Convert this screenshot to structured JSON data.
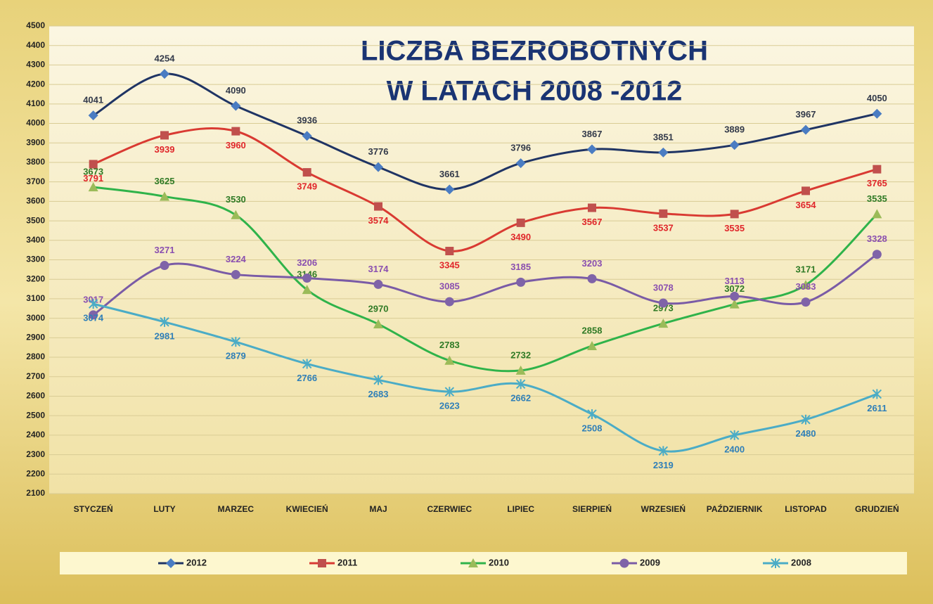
{
  "chart_data": {
    "type": "line",
    "title": "LICZBA BEZROBOTNYCH",
    "subtitle": "W LATACH 2008 -2012",
    "categories": [
      "STYCZEŃ",
      "LUTY",
      "MARZEC",
      "KWIECIEŃ",
      "MAJ",
      "CZERWIEC",
      "LIPIEC",
      "SIERPIEŃ",
      "WRZESIEŃ",
      "PAŹDZIERNIK",
      "LISTOPAD",
      "GRUDZIEŃ"
    ],
    "series": [
      {
        "name": "2012",
        "color": "#1f3464",
        "marker_color": "#4a7cc2",
        "marker": "diamond",
        "label_color": "#333a4a",
        "label_position": "above",
        "values": [
          4041,
          4254,
          4090,
          3936,
          3776,
          3661,
          3796,
          3867,
          3851,
          3889,
          3967,
          4050
        ]
      },
      {
        "name": "2011",
        "color": "#d93a32",
        "marker_color": "#c0504d",
        "marker": "square",
        "label_color": "#e0262a",
        "label_position": "below",
        "values": [
          3791,
          3939,
          3960,
          3749,
          3574,
          3345,
          3490,
          3567,
          3537,
          3535,
          3654,
          3765
        ]
      },
      {
        "name": "2010",
        "color": "#2fb34a",
        "marker_color": "#9bbb59",
        "marker": "triangle",
        "label_color": "#2f7a25",
        "label_position": "above",
        "values": [
          3673,
          3625,
          3530,
          3146,
          2970,
          2783,
          2732,
          2858,
          2973,
          3072,
          3171,
          3535
        ]
      },
      {
        "name": "2009",
        "color": "#7a5ba6",
        "marker_color": "#7f63a8",
        "marker": "circle",
        "label_color": "#8a4fb0",
        "label_position": "above",
        "values": [
          3017,
          3271,
          3224,
          3206,
          3174,
          3085,
          3185,
          3203,
          3078,
          3113,
          3083,
          3328
        ]
      },
      {
        "name": "2008",
        "color": "#4bacc6",
        "marker_color": "#4bacc6",
        "marker": "star",
        "label_color": "#2f7fb8",
        "label_position": "below",
        "values": [
          3074,
          2981,
          2879,
          2766,
          2683,
          2623,
          2662,
          2508,
          2319,
          2400,
          2480,
          2611
        ]
      }
    ],
    "ylim": [
      2100,
      4500
    ],
    "yticks": [
      2100,
      2200,
      2300,
      2400,
      2500,
      2600,
      2700,
      2800,
      2900,
      3000,
      3100,
      3200,
      3300,
      3400,
      3500,
      3600,
      3700,
      3800,
      3900,
      4000,
      4100,
      4200,
      4300,
      4400,
      4500
    ],
    "grid": true,
    "smooth": true,
    "legend": "bottom"
  }
}
